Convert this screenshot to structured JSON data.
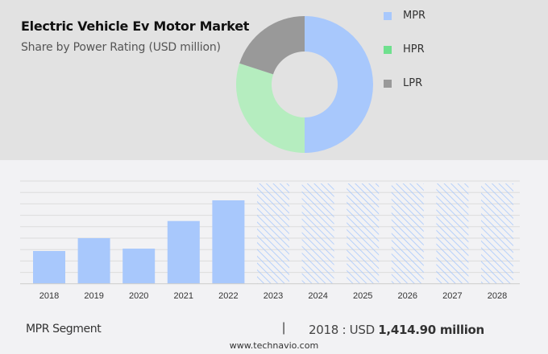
{
  "header": {
    "title": "Electric Vehicle Ev Motor Market",
    "subtitle": "Share by Power Rating (USD million)"
  },
  "legend": [
    {
      "label": "MPR",
      "color": "#a8c8fc"
    },
    {
      "label": "HPR",
      "color": "#6fe08e"
    },
    {
      "label": "LPR",
      "color": "#999999"
    }
  ],
  "footer": {
    "segment": "MPR Segment",
    "separator": "|",
    "year_label": "2018 : USD ",
    "value": "1,414.90 million",
    "site": "www.technavio.com"
  },
  "chart_data": [
    {
      "type": "pie",
      "title": "Electric Vehicle Ev Motor Market",
      "subtitle": "Share by Power Rating (USD million)",
      "donut": true,
      "categories": [
        "MPR",
        "HPR",
        "LPR"
      ],
      "values": [
        50,
        30,
        20
      ],
      "colors": [
        "#a8c8fc",
        "#b5edbf",
        "#999999"
      ],
      "legend_position": "right"
    },
    {
      "type": "bar",
      "title": "MPR Segment",
      "categories": [
        "2018",
        "2019",
        "2020",
        "2021",
        "2022",
        "2023",
        "2024",
        "2025",
        "2026",
        "2027",
        "2028"
      ],
      "values": [
        1414.9,
        1971,
        1519,
        2711,
        3605,
        null,
        null,
        null,
        null,
        null,
        null
      ],
      "forecast_years": [
        "2023",
        "2024",
        "2025",
        "2026",
        "2027",
        "2028"
      ],
      "forecast_style": "hatched",
      "bar_color": "#a8c8fc",
      "xlabel": "",
      "ylabel": "",
      "grid": true,
      "annotation": "2018 : USD 1,414.90 million"
    }
  ]
}
